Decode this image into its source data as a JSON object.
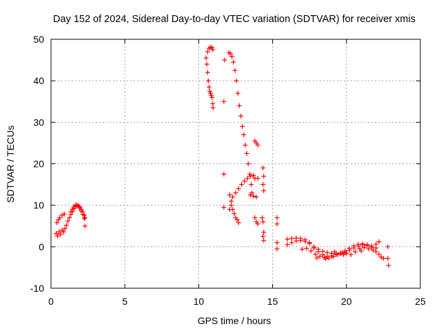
{
  "chart_data": {
    "type": "scatter",
    "title": "Day 152 of 2024, Sidereal Day-to-day VTEC variation (SDTVAR) for receiver xmis",
    "xlabel": "GPS time / hours",
    "ylabel": "SDTVAR / TECUs",
    "xlim": [
      0,
      25
    ],
    "ylim": [
      -10,
      50
    ],
    "xticks": [
      0,
      5,
      10,
      15,
      20,
      25
    ],
    "yticks": [
      -10,
      0,
      10,
      20,
      30,
      40,
      50
    ],
    "grid": true,
    "marker": "+",
    "color": "#ff0000",
    "series": [
      {
        "name": "SDTVAR",
        "points": [
          [
            0.35,
            3.2
          ],
          [
            0.45,
            2.6
          ],
          [
            0.55,
            3.6
          ],
          [
            0.65,
            3.0
          ],
          [
            0.75,
            4.0
          ],
          [
            0.85,
            3.6
          ],
          [
            0.95,
            4.4
          ],
          [
            1.05,
            5.2
          ],
          [
            1.15,
            6.2
          ],
          [
            1.25,
            7.0
          ],
          [
            1.35,
            7.8
          ],
          [
            1.45,
            8.5
          ],
          [
            1.55,
            9.2
          ],
          [
            1.65,
            9.7
          ],
          [
            1.75,
            9.9
          ],
          [
            1.85,
            9.8
          ],
          [
            1.95,
            9.3
          ],
          [
            2.05,
            8.6
          ],
          [
            2.15,
            7.8
          ],
          [
            2.25,
            6.8
          ],
          [
            2.3,
            5.0
          ],
          [
            0.4,
            5.8
          ],
          [
            0.5,
            6.5
          ],
          [
            0.6,
            7.0
          ],
          [
            0.75,
            7.6
          ],
          [
            0.9,
            7.9
          ],
          [
            1.35,
            8.4
          ],
          [
            1.45,
            9.0
          ],
          [
            1.55,
            9.6
          ],
          [
            1.65,
            10.0
          ],
          [
            1.75,
            10.1
          ],
          [
            1.85,
            9.9
          ],
          [
            1.95,
            9.6
          ],
          [
            2.05,
            9.0
          ],
          [
            2.15,
            8.4
          ],
          [
            2.25,
            7.6
          ],
          [
            2.3,
            7.0
          ],
          [
            10.5,
            45.5
          ],
          [
            10.55,
            44.0
          ],
          [
            10.6,
            42.0
          ],
          [
            10.65,
            40.0
          ],
          [
            10.7,
            38.5
          ],
          [
            10.75,
            37.5
          ],
          [
            10.8,
            37.0
          ],
          [
            10.85,
            36.5
          ],
          [
            10.9,
            36.0
          ],
          [
            10.95,
            34.5
          ],
          [
            10.97,
            33.5
          ],
          [
            10.6,
            47.0
          ],
          [
            10.7,
            47.8
          ],
          [
            10.8,
            48.1
          ],
          [
            10.9,
            48.0
          ],
          [
            10.95,
            47.5
          ],
          [
            11.75,
            45.0
          ],
          [
            11.7,
            35.0
          ],
          [
            11.7,
            17.5
          ],
          [
            11.7,
            9.5
          ],
          [
            12.05,
            46.8
          ],
          [
            12.15,
            46.5
          ],
          [
            12.25,
            45.8
          ],
          [
            12.35,
            44.5
          ],
          [
            12.45,
            42.5
          ],
          [
            12.55,
            40.0
          ],
          [
            12.65,
            37.0
          ],
          [
            12.75,
            34.0
          ],
          [
            12.85,
            31.5
          ],
          [
            12.95,
            29.0
          ],
          [
            13.05,
            27.0
          ],
          [
            13.15,
            24.5
          ],
          [
            13.25,
            22.5
          ],
          [
            13.35,
            20.0
          ],
          [
            13.45,
            17.5
          ],
          [
            13.55,
            15.0
          ],
          [
            13.6,
            13.0
          ],
          [
            12.1,
            12.5
          ],
          [
            12.2,
            10.0
          ],
          [
            12.3,
            9.0
          ],
          [
            12.4,
            8.0
          ],
          [
            12.5,
            7.0
          ],
          [
            12.6,
            6.5
          ],
          [
            12.7,
            5.8
          ],
          [
            12.1,
            9.0
          ],
          [
            12.2,
            11.0
          ],
          [
            12.3,
            12.0
          ],
          [
            12.5,
            13.0
          ],
          [
            12.7,
            14.0
          ],
          [
            12.9,
            15.0
          ],
          [
            13.1,
            15.8
          ],
          [
            13.3,
            16.5
          ],
          [
            13.5,
            17.0
          ],
          [
            13.7,
            17.2
          ],
          [
            13.5,
            12.5
          ],
          [
            13.7,
            12.2
          ],
          [
            13.9,
            12.0
          ],
          [
            13.8,
            25.5
          ],
          [
            13.9,
            25.0
          ],
          [
            14.0,
            24.5
          ],
          [
            13.8,
            7.0
          ],
          [
            13.9,
            6.0
          ],
          [
            14.0,
            5.5
          ],
          [
            13.8,
            16.5
          ],
          [
            14.0,
            16.5
          ],
          [
            14.35,
            19.0
          ],
          [
            14.4,
            17.0
          ],
          [
            14.35,
            15.0
          ],
          [
            14.4,
            13.5
          ],
          [
            14.3,
            7.0
          ],
          [
            14.35,
            6.0
          ],
          [
            14.4,
            3.5
          ],
          [
            14.35,
            2.5
          ],
          [
            14.4,
            1.5
          ],
          [
            15.3,
            7.0
          ],
          [
            15.3,
            5.5
          ],
          [
            15.3,
            1.0
          ],
          [
            15.3,
            -0.5
          ],
          [
            16.0,
            0.5
          ],
          [
            16.3,
            1.0
          ],
          [
            16.6,
            1.4
          ],
          [
            16.9,
            1.5
          ],
          [
            17.2,
            1.3
          ],
          [
            17.5,
            0.8
          ],
          [
            17.8,
            0.0
          ],
          [
            18.1,
            -0.6
          ],
          [
            18.4,
            -1.1
          ],
          [
            18.7,
            -1.4
          ],
          [
            19.0,
            -1.6
          ],
          [
            19.3,
            -1.7
          ],
          [
            19.6,
            -1.6
          ],
          [
            19.9,
            -1.3
          ],
          [
            20.2,
            -0.8
          ],
          [
            20.5,
            -0.3
          ],
          [
            20.8,
            0.2
          ],
          [
            21.1,
            0.5
          ],
          [
            21.4,
            0.3
          ],
          [
            21.7,
            -0.1
          ],
          [
            22.0,
            -0.3
          ],
          [
            16.0,
            1.8
          ],
          [
            16.3,
            2.0
          ],
          [
            16.6,
            2.1
          ],
          [
            16.9,
            2.0
          ],
          [
            17.2,
            1.7
          ],
          [
            17.5,
            1.0
          ],
          [
            17.8,
            -0.3
          ],
          [
            18.1,
            -1.2
          ],
          [
            18.4,
            -1.9
          ],
          [
            18.7,
            -2.3
          ],
          [
            19.0,
            -2.2
          ],
          [
            19.3,
            -1.9
          ],
          [
            19.6,
            -1.5
          ],
          [
            19.9,
            -1.0
          ],
          [
            20.2,
            -0.4
          ],
          [
            20.5,
            0.2
          ],
          [
            20.8,
            0.6
          ],
          [
            21.1,
            0.7
          ],
          [
            21.4,
            0.5
          ],
          [
            21.7,
            0.2
          ],
          [
            22.0,
            0.6
          ],
          [
            22.2,
            1.2
          ],
          [
            17.0,
            -0.6
          ],
          [
            17.3,
            -0.4
          ],
          [
            17.6,
            -1.0
          ],
          [
            17.9,
            -1.8
          ],
          [
            18.2,
            -2.3
          ],
          [
            18.5,
            -2.6
          ],
          [
            18.8,
            -2.7
          ],
          [
            19.1,
            -2.4
          ],
          [
            19.4,
            -1.9
          ],
          [
            19.7,
            -1.5
          ],
          [
            20.0,
            -1.6
          ],
          [
            20.3,
            -1.9
          ],
          [
            20.6,
            -1.2
          ],
          [
            20.9,
            -0.5
          ],
          [
            21.2,
            -0.2
          ],
          [
            21.5,
            -0.5
          ],
          [
            21.8,
            -0.8
          ],
          [
            22.0,
            -1.2
          ],
          [
            22.2,
            -1.8
          ],
          [
            22.35,
            -2.5
          ],
          [
            18.0,
            -2.7
          ],
          [
            18.6,
            -2.9
          ],
          [
            19.2,
            -1.2
          ],
          [
            19.8,
            -1.9
          ],
          [
            21.0,
            -1.0
          ],
          [
            22.5,
            -2.8
          ],
          [
            22.8,
            0.0
          ],
          [
            22.8,
            -2.8
          ],
          [
            22.85,
            -4.5
          ]
        ]
      }
    ]
  }
}
